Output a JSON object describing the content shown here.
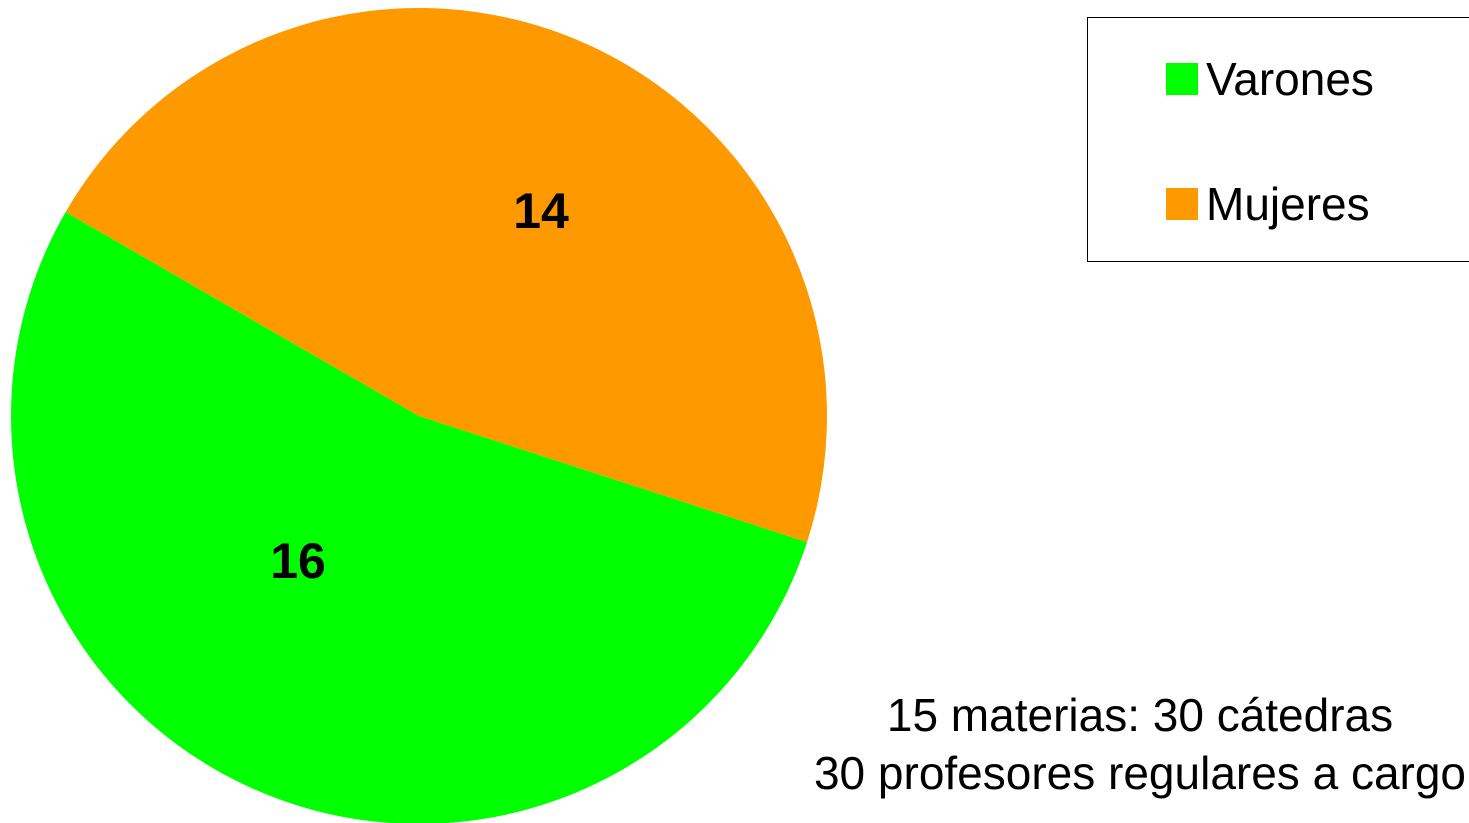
{
  "chart_data": {
    "type": "pie",
    "slices": [
      {
        "name": "Varones",
        "value": 16,
        "label": "16",
        "color": "#00FF00"
      },
      {
        "name": "Mujeres",
        "value": 14,
        "label": "14",
        "color": "#FF9900"
      }
    ],
    "legend": {
      "placement": "top-right",
      "entries": [
        "Varones",
        "Mujeres"
      ]
    },
    "annotations": [
      "15 materias: 30 cátedras",
      "30 profesores regulares a cargo"
    ]
  }
}
